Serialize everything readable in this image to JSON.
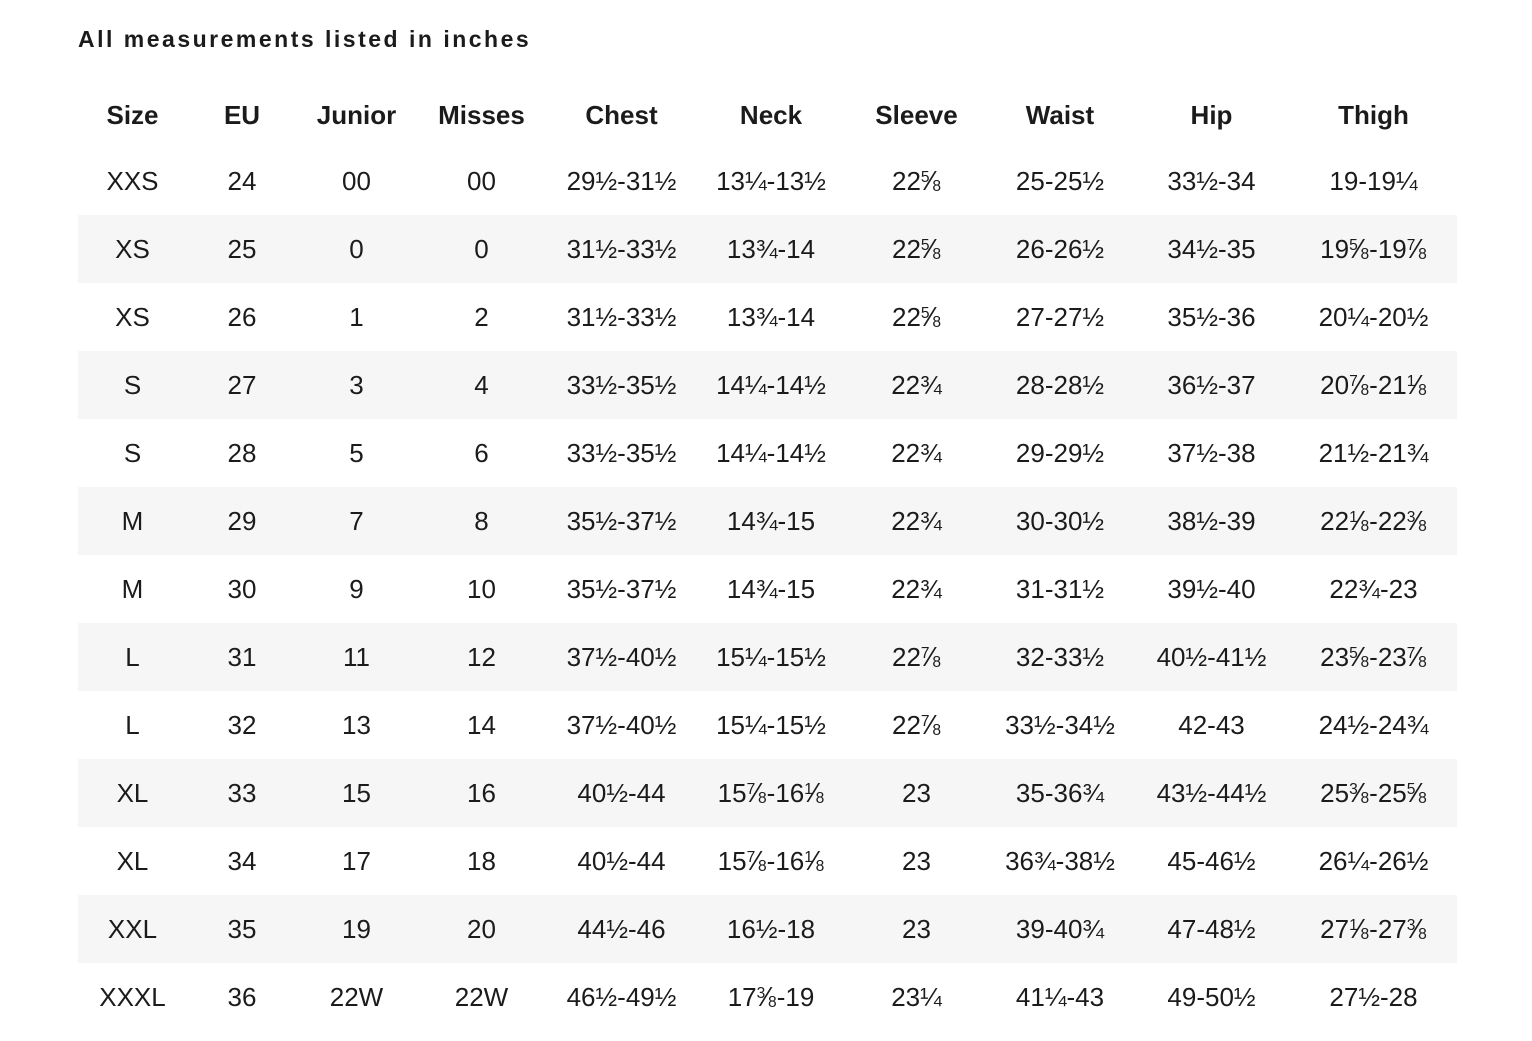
{
  "page": {
    "note": "All measurements listed in inches"
  },
  "chart_data": {
    "type": "table",
    "title": "All measurements listed in inches",
    "units": "inches",
    "columns": [
      "Size",
      "EU",
      "Junior",
      "Misses",
      "Chest",
      "Neck",
      "Sleeve",
      "Waist",
      "Hip",
      "Thigh"
    ],
    "rows": [
      [
        "XXS",
        "24",
        "00",
        "00",
        "29½-31½",
        "13¼-13½",
        "22⅝",
        "25-25½",
        "33½-34",
        "19-19¼"
      ],
      [
        "XS",
        "25",
        "0",
        "0",
        "31½-33½",
        "13¾-14",
        "22⅝",
        "26-26½",
        "34½-35",
        "19⅝-19⅞"
      ],
      [
        "XS",
        "26",
        "1",
        "2",
        "31½-33½",
        "13¾-14",
        "22⅝",
        "27-27½",
        "35½-36",
        "20¼-20½"
      ],
      [
        "S",
        "27",
        "3",
        "4",
        "33½-35½",
        "14¼-14½",
        "22¾",
        "28-28½",
        "36½-37",
        "20⅞-21⅛"
      ],
      [
        "S",
        "28",
        "5",
        "6",
        "33½-35½",
        "14¼-14½",
        "22¾",
        "29-29½",
        "37½-38",
        "21½-21¾"
      ],
      [
        "M",
        "29",
        "7",
        "8",
        "35½-37½",
        "14¾-15",
        "22¾",
        "30-30½",
        "38½-39",
        "22⅛-22⅜"
      ],
      [
        "M",
        "30",
        "9",
        "10",
        "35½-37½",
        "14¾-15",
        "22¾",
        "31-31½",
        "39½-40",
        "22¾-23"
      ],
      [
        "L",
        "31",
        "11",
        "12",
        "37½-40½",
        "15¼-15½",
        "22⅞",
        "32-33½",
        "40½-41½",
        "23⅝-23⅞"
      ],
      [
        "L",
        "32",
        "13",
        "14",
        "37½-40½",
        "15¼-15½",
        "22⅞",
        "33½-34½",
        "42-43",
        "24½-24¾"
      ],
      [
        "XL",
        "33",
        "15",
        "16",
        "40½-44",
        "15⅞-16⅛",
        "23",
        "35-36¾",
        "43½-44½",
        "25⅜-25⅝"
      ],
      [
        "XL",
        "34",
        "17",
        "18",
        "40½-44",
        "15⅞-16⅛",
        "23",
        "36¾-38½",
        "45-46½",
        "26¼-26½"
      ],
      [
        "XXL",
        "35",
        "19",
        "20",
        "44½-46",
        "16½-18",
        "23",
        "39-40¾",
        "47-48½",
        "27⅛-27⅜"
      ],
      [
        "XXXL",
        "36",
        "22W",
        "22W",
        "46½-49½",
        "17⅜-19",
        "23¼",
        "41¼-43",
        "49-50½",
        "27½-28"
      ]
    ],
    "layout": {
      "stripe_color": "#f6f6f6",
      "text_color": "#1b1b1b",
      "background": "#ffffff",
      "striped_rows": "even",
      "alignment": "center",
      "grid": false
    }
  }
}
